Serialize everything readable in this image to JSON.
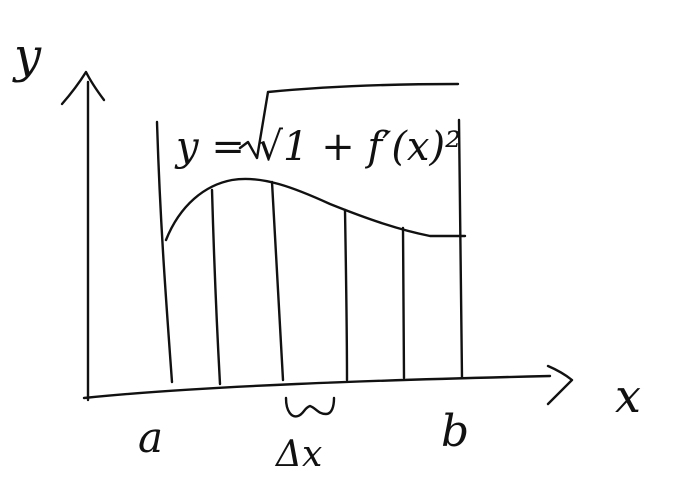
{
  "diagram": {
    "y_axis_label": "y",
    "x_axis_label": "x",
    "equation": "y = √1 + f′(x)²",
    "lower_bound_label": "a",
    "upper_bound_label": "b",
    "width_label": "Δx",
    "ink_color": "#111111",
    "background_color": "#ffffff"
  }
}
